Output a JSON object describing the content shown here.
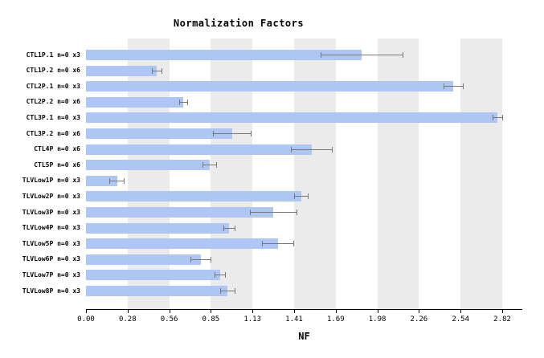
{
  "chart_data": {
    "type": "bar",
    "orientation": "horizontal",
    "title": "Normalization Factors",
    "xlabel": "NF",
    "categories": [
      "CTL1P.1 n=0 x3",
      "CTL1P.2 n=0 x6",
      "CTL2P.1 n=0 x3",
      "CTL2P.2 n=0 x6",
      "CTL3P.1 n=0 x3",
      "CTL3P.2 n=0 x6",
      "CTL4P n=0 x6",
      "CTL5P n=0 x6",
      "TLVLow1P n=0 x3",
      "TLVLow2P n=0 x3",
      "TLVLow3P n=0 x3",
      "TLVLow4P n=0 x3",
      "TLVLow5P n=0 x3",
      "TLVLow6P n=0 x3",
      "TLVLow7P n=0 x3",
      "TLVLow8P n=0 x3"
    ],
    "values": [
      1.87,
      0.48,
      2.49,
      0.66,
      2.79,
      0.99,
      1.53,
      0.84,
      0.21,
      1.46,
      1.27,
      0.97,
      1.3,
      0.78,
      0.91,
      0.96
    ],
    "errors": [
      0.28,
      0.035,
      0.07,
      0.03,
      0.035,
      0.13,
      0.14,
      0.05,
      0.05,
      0.05,
      0.16,
      0.04,
      0.11,
      0.07,
      0.04,
      0.05
    ],
    "x_ticks": [
      "0.00",
      "0.28",
      "0.56",
      "0.85",
      "1.13",
      "1.41",
      "1.69",
      "1.98",
      "2.26",
      "2.54",
      "2.82"
    ],
    "xlim": [
      0,
      2.95
    ],
    "grid": false,
    "legend": null,
    "bar_color": "#aec6f4",
    "error_color": "#777777",
    "stripe_color": "#ebebeb",
    "axis_color": "#000000",
    "background_color": "#ffffff"
  }
}
